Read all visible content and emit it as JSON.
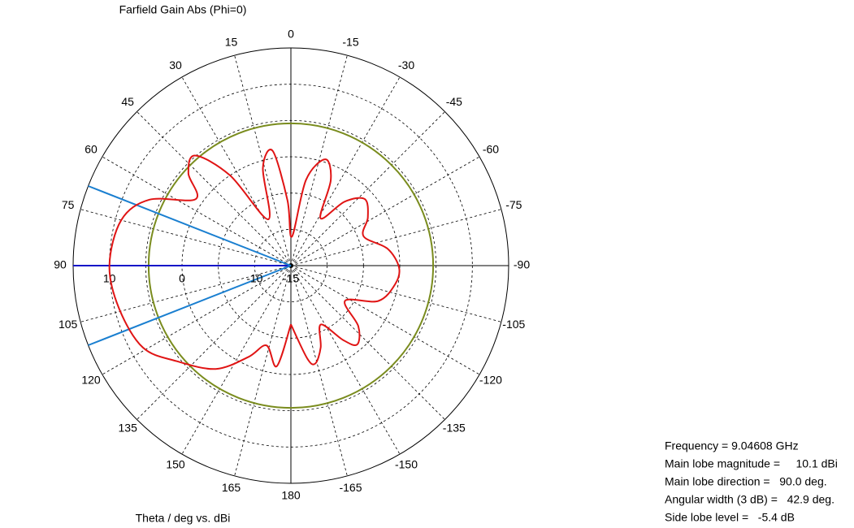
{
  "chart_data": {
    "type": "polar",
    "title": "Farfield Gain Abs (Phi=0)",
    "axis_label": "Theta / deg vs. dBi",
    "rlim": [
      -15,
      15
    ],
    "rticks": [
      -15,
      -10,
      0,
      10
    ],
    "rgrid": [
      -10,
      -5,
      0,
      5,
      10,
      15
    ],
    "angle_ticks": [
      0,
      15,
      30,
      45,
      60,
      75,
      90,
      105,
      120,
      135,
      150,
      165,
      180,
      -165,
      -150,
      -135,
      -120,
      -105,
      -90,
      -75,
      -60,
      -45,
      -30,
      -15
    ],
    "reference_level": 4.6,
    "reference_color": "#7a8c1e",
    "main_lobe_direction": 90,
    "main_lobe_color": "#1414c8",
    "angular_width": 42.9,
    "width_color": "#1a7fd0",
    "series": [
      {
        "name": "Farfield Gain Abs",
        "color": "#e01414",
        "x": [
          -180,
          -170,
          -166,
          -160,
          -153,
          -145,
          -140,
          -132,
          -123,
          -112,
          -100,
          -91,
          -80,
          -68,
          -58,
          -48,
          -40,
          -32,
          -25,
          -18,
          -10,
          -2,
          3,
          9,
          16,
          26,
          34,
          41,
          48,
          55,
          65,
          75,
          90,
          104,
          119,
          130,
          144,
          155,
          163,
          172,
          180
        ],
        "values": [
          -6.9,
          -2.0,
          -1.1,
          -3.0,
          -5.9,
          -2.5,
          -0.8,
          -2.5,
          -6.1,
          -2.0,
          -0.4,
          -0.1,
          -1.5,
          -4.2,
          -2.5,
          -1.3,
          -3.5,
          -7.3,
          -2.0,
          0.4,
          -3.0,
          -11.0,
          -6.0,
          1.0,
          -1.0,
          -7.9,
          0.0,
          5.1,
          4.0,
          1.0,
          6.5,
          9.2,
          10.0,
          9.4,
          8.3,
          5.5,
          2.6,
          -1.1,
          -3.5,
          -1.0,
          -6.9
        ]
      }
    ],
    "info": [
      "Frequency = 9.04608 GHz",
      "Main lobe magnitude =     10.1 dBi",
      "Main lobe direction =   90.0 deg.",
      "Angular width (3 dB) =   42.9 deg.",
      "Side lobe level =   -5.4 dB"
    ]
  }
}
